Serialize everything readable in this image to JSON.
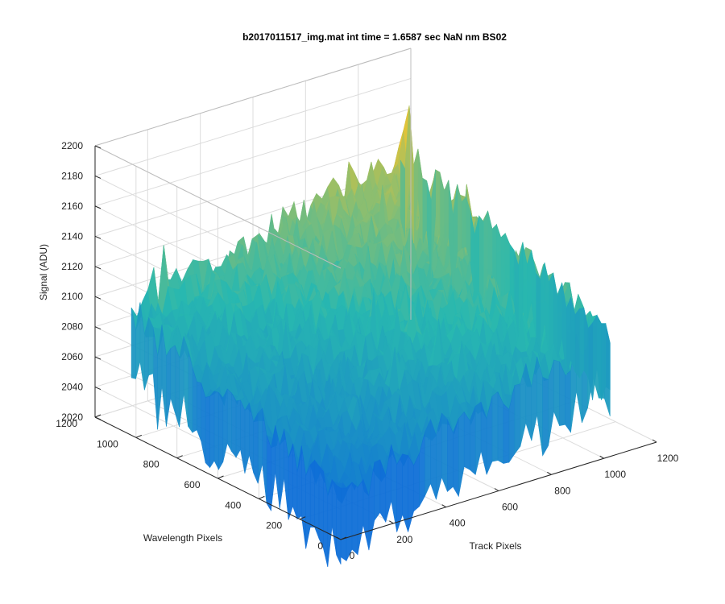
{
  "chart_data": {
    "type": "surface",
    "title": "b2017011517_img.mat int time = 1.6587 sec  NaN nm BS02",
    "xlabel": "Track Pixels",
    "ylabel": "Wavelength Pixels",
    "zlabel": "Signal (ADU)",
    "xlim": [
      0,
      1200
    ],
    "ylim": [
      0,
      1200
    ],
    "zlim": [
      2020,
      2200
    ],
    "x_ticks": [
      "0",
      "200",
      "400",
      "600",
      "800",
      "1000",
      "1200"
    ],
    "y_ticks": [
      "0",
      "200",
      "400",
      "600",
      "800",
      "1000",
      "1200"
    ],
    "z_ticks": [
      "2020",
      "2040",
      "2060",
      "2080",
      "2100",
      "2120",
      "2140",
      "2160",
      "2180",
      "2200"
    ],
    "data_extent": {
      "x": [
        1,
        1024
      ],
      "y": [
        1,
        1024
      ]
    },
    "corner_values": [
      {
        "x": 1,
        "y": 1,
        "z": 2050
      },
      {
        "x": 1024,
        "y": 1,
        "z": 2105
      },
      {
        "x": 1,
        "y": 1024,
        "z": 2100
      },
      {
        "x": 1024,
        "y": 1024,
        "z": 2150
      }
    ],
    "grid": true,
    "colormap": "parula",
    "colors": {
      "low": "#0f6fd8",
      "mid": "#28b8b0",
      "high": "#f5c42c"
    }
  }
}
